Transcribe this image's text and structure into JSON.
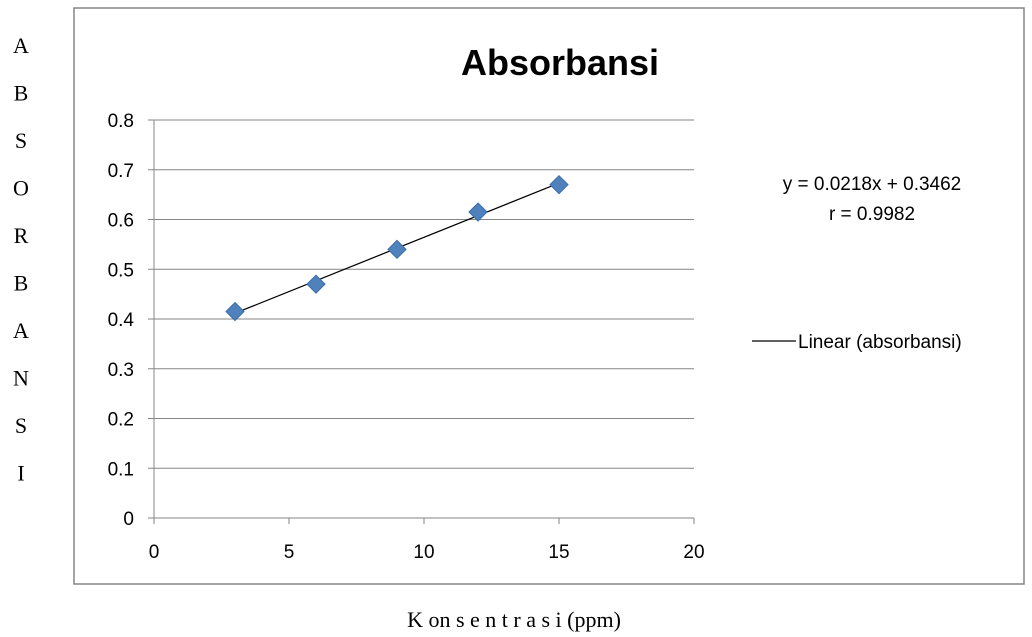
{
  "chart_data": {
    "type": "scatter",
    "title": "Absorbansi",
    "xlabel": "K on s e n t r a s i (ppm)",
    "ylabel_letters": [
      "A",
      "B",
      "S",
      "O",
      "R",
      "B",
      "A",
      "N",
      "S",
      "I"
    ],
    "xlim": [
      0,
      20
    ],
    "ylim": [
      0,
      0.8
    ],
    "x_ticks": [
      "0",
      "5",
      "10",
      "15",
      "20"
    ],
    "y_ticks": [
      "0",
      "0.1",
      "0.2",
      "0.3",
      "0.4",
      "0.5",
      "0.6",
      "0.7",
      "0.8"
    ],
    "grid": true,
    "series": [
      {
        "points": [
          {
            "x": 3,
            "y": 0.415
          },
          {
            "x": 6,
            "y": 0.47
          },
          {
            "x": 9,
            "y": 0.54
          },
          {
            "x": 12,
            "y": 0.615
          },
          {
            "x": 15,
            "y": 0.67
          }
        ],
        "marker": "diamond",
        "color": "#4f81bd"
      }
    ],
    "trendline": {
      "name": "Linear (absorbansi)",
      "slope": 0.0218,
      "intercept": 0.3462,
      "x_range": [
        3,
        15
      ],
      "color": "#000000"
    },
    "annotations": {
      "equation": "y = 0.0218x + 0.3462",
      "r_value": "r = 0.9982"
    },
    "legend_position": "right"
  }
}
